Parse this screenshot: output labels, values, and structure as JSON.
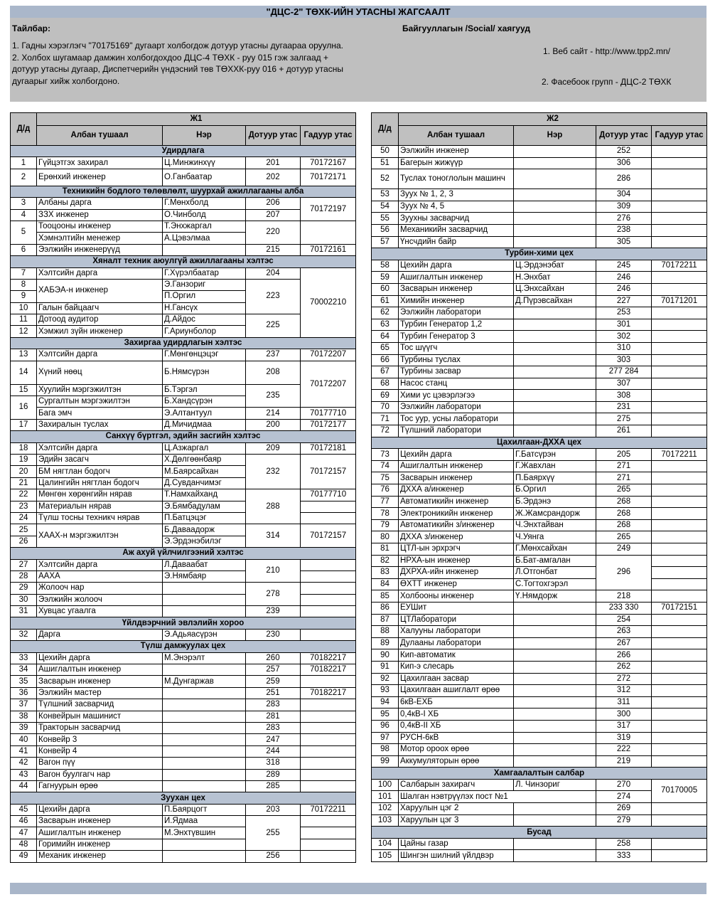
{
  "title": "\"ДЦС-2\" ТӨХК-ИЙН УТАСНЫ ЖАГСААЛТ",
  "notes": {
    "label": "Тайлбар:",
    "items": [
      "1. Гадны хэрэглэгч  \"70175169\" дугаарт холбогдож дотуур утасны дугаараа оруулна.",
      "2. Холбох шугамаар дамжин холбогдохдоо ДЦС-4 ТӨХК - руу 015 гэж залгаад + дотуур утасны дугаар, Диспетчерийн үндэсний төв ТӨХХК-руу 016 + дотуур утасны дугаарыг хийж холбогдоно."
    ]
  },
  "social": {
    "label": "Байгууллагын /Social/ хаягууд",
    "website": "1. Веб сайт - http://www.tpp2.mn/",
    "facebook": "2. Фасебоок групп - ДЦС-2 ТӨХК"
  },
  "columns": {
    "no": "Д/д",
    "title": "Албан тушаал",
    "name": "Нэр",
    "ext": "Дотуур утас",
    "phone": "Гадуур утас"
  },
  "tables": [
    {
      "heading": "Ж1",
      "rows": [
        {
          "section": "Удирдлага"
        },
        {
          "no": "1",
          "title": "Гүйцэтгэх захирал",
          "name": "Ц.Минжинхүү",
          "ext": "201",
          "phone": "70172167"
        },
        {
          "no": "2",
          "title": "Ерөнхий инженер",
          "name": "О.Ганбаатар",
          "ext": "202",
          "phone": "70172171"
        },
        {
          "section": "Техникийн бодлого төлөвлөлт, шуурхай ажиллагааны алба"
        },
        {
          "no": "3",
          "title": "Албаны дарга",
          "name": "Г.Мөнхболд",
          "ext": "206",
          "phone": "70172197"
        },
        {
          "no": "4",
          "title": "ЗЗХ инженер",
          "name": "О.Чинболд",
          "ext": "207"
        },
        {
          "no": "5",
          "title": "Тооцооны инженер",
          "name": "Т.Энхжаргал",
          "ext": "220"
        },
        {
          "title": "Хэмнэлтийн менежер",
          "name": "А.Цэвэлмаа"
        },
        {
          "no": "6",
          "title": "Ээлжийн инженерүүд",
          "ext": "215",
          "phone": "70172161"
        },
        {
          "section": "Хяналт техник аюулгүй ажиллагааны хэлтэс"
        },
        {
          "no": "7",
          "title": "Хэлтсийн дарга",
          "name": "Г.Хүрэлбаатар",
          "ext": "204",
          "phone": "70002210"
        },
        {
          "no": "8",
          "title": "ХАБЭА-н инженер",
          "name": "Э.Ганзориг",
          "ext": "223"
        },
        {
          "no": "9",
          "name": "П.Оргил"
        },
        {
          "no": "10",
          "title": "Галын байцаагч",
          "name": "Н.Гансүх"
        },
        {
          "no": "11",
          "title": "Дотоод аудитор",
          "name": "Д.Айдос",
          "ext": "225"
        },
        {
          "no": "12",
          "title": "Хэмжил зүйн инженер",
          "name": "Г.Ариунболор"
        },
        {
          "section": "Захиргаа удирдлагын хэлтэс"
        },
        {
          "no": "13",
          "title": "Хэлтсийн дарга",
          "name": "Г.Мөнгөнцэцэг",
          "ext": "237",
          "phone": "70172207"
        },
        {
          "no": "14",
          "title": "Хүний нөөц",
          "name": "Б.Нямсүрэн",
          "ext": "208",
          "phone": "70172207"
        },
        {
          "no": "15",
          "title": "Хуулийн мэргэжилтэн",
          "name": "Б.Тэргэл",
          "ext": "235"
        },
        {
          "no": "16",
          "title": "Сургалтын мэргэжилтэн",
          "name": "Б.Хандсүрэн"
        },
        {
          "title": "Бага эмч",
          "name": "Э.Алтантуул",
          "ext": "214",
          "phone": "70177710"
        },
        {
          "no": "17",
          "title": "Захиралын туслах",
          "name": "Д.Мичидмаа",
          "ext": "200",
          "phone": "70172177"
        },
        {
          "section": "Санхүү бүртгэл, эдийн засгийн хэлтэс"
        },
        {
          "no": "18",
          "title": "Хэлтсийн дарга",
          "name": "Ц.Азжаргал",
          "ext": "209",
          "phone": "70172181"
        },
        {
          "no": "19",
          "title": "Эдийн засагч",
          "name": "Х.Дөлгөөнбаяр",
          "ext": "232",
          "phone": "70172157"
        },
        {
          "no": "20",
          "title": "БМ нягтлан бодогч",
          "name": "М.Баярсайхан"
        },
        {
          "no": "21",
          "title": "Цалингийн нягтлан бодогч",
          "name": "Д.Сувданчимэг"
        },
        {
          "no": "22",
          "title": "Мөнгөн хөрөнгийн нярав",
          "name": "Т.Намхайханд",
          "ext": "288",
          "phone": "70177710"
        },
        {
          "no": "23",
          "title": "Материалын нярав",
          "name": "Э.Бямбадулам"
        },
        {
          "no": "24",
          "title": "Түлш тосны техникч нярав",
          "name": "П.Батцэцэг"
        },
        {
          "no": "25",
          "title": "ХААХ-н мэргэжилтэн",
          "name": "Б.Даваадорж",
          "ext": "314",
          "phone": "70172157"
        },
        {
          "no": "26",
          "name": "Э.Эрдэнэбилэг"
        },
        {
          "section": "Аж ахуй үйлчилгээний хэлтэс"
        },
        {
          "no": "27",
          "title": "Хэлтсийн дарга",
          "name": "Л.Даваабат",
          "ext": "210"
        },
        {
          "no": "28",
          "title": "ААХА",
          "name": "Э.Нямбаяр"
        },
        {
          "no": "29",
          "title": "Жолооч нар",
          "ext": "278"
        },
        {
          "no": "30",
          "title": "Ээлжийн жолооч"
        },
        {
          "no": "31",
          "title": "Хувцас угаалга",
          "ext": "239"
        },
        {
          "section": "Үйлдвэрчний эвлэлийн хороо"
        },
        {
          "no": "32",
          "title": "Дарга",
          "name": "Э.Адьяасүрэн",
          "ext": "230"
        },
        {
          "section": "Түлш дамжуулах цех"
        },
        {
          "no": "33",
          "title": "Цехийн дарга",
          "name": "М.Энэрэлт",
          "ext": "260",
          "phone": "70182217"
        },
        {
          "no": "34",
          "title": "Ашиглалтын инженер",
          "ext": "257",
          "phone": "70182217"
        },
        {
          "no": "35",
          "title": "Засварын инженер",
          "name": "М.Дунгаржав",
          "ext": "259"
        },
        {
          "no": "36",
          "title": "Ээлжийн мастер",
          "ext": "251",
          "phone": "70182217"
        },
        {
          "no": "37",
          "title": "Түлшний засварчид",
          "ext": "283"
        },
        {
          "no": "38",
          "title": "Конвейрын машинист",
          "ext": "281"
        },
        {
          "no": "39",
          "title": "Тракторын засварчид",
          "ext": "283"
        },
        {
          "no": "40",
          "title": "Конвейр 3",
          "ext": "247"
        },
        {
          "no": "41",
          "title": "Конвейр 4",
          "ext": "244"
        },
        {
          "no": "42",
          "title": "Вагон пүү",
          "ext": "318"
        },
        {
          "no": "43",
          "title": "Вагон буулгагч нар",
          "ext": "289"
        },
        {
          "no": "44",
          "title": "Гагнуурын өрөө",
          "ext": "285"
        },
        {
          "section": "Зуухан цех"
        },
        {
          "no": "45",
          "title": "Цехийн дарга",
          "name": "П.Баярцогт",
          "ext": "203",
          "phone": "70172211"
        },
        {
          "no": "46",
          "title": "Засварын инженер",
          "name": "И.Ядмаа",
          "ext": "255"
        },
        {
          "no": "47",
          "title": "Ашиглалтын инженер",
          "name": "М.Энхтүвшин"
        },
        {
          "no": "48",
          "title": "Горимийн инженер"
        },
        {
          "no": "49",
          "title": "Механик инженер",
          "ext": "256"
        }
      ]
    },
    {
      "heading": "Ж2",
      "rows": [
        {
          "no": "50",
          "title": "Ээлжийн инженер",
          "ext": "252"
        },
        {
          "no": "51",
          "title": "Багерын жижүүр",
          "ext": "306"
        },
        {
          "no": "52",
          "title": "Туслах тоноглолын машинч",
          "ext": "286"
        },
        {
          "no": "53",
          "title": "Зуух № 1, 2, 3",
          "ext": "304"
        },
        {
          "no": "54",
          "title": "Зуух № 4,  5",
          "ext": "309"
        },
        {
          "no": "55",
          "title": "Зуухны засварчид",
          "ext": "276"
        },
        {
          "no": "56",
          "title": "Механикийн засварчид",
          "ext": "238"
        },
        {
          "no": "57",
          "title": "Үнсчдийн байр",
          "ext": "305"
        },
        {
          "section": "Турбин-хими цех"
        },
        {
          "no": "58",
          "title": "Цехийн дарга",
          "name": "Ц.Эрдэнэбат",
          "ext": "245",
          "phone": "70172211"
        },
        {
          "no": "59",
          "title": "Ашиглалтын инженер",
          "name": "Н.Энхбат",
          "ext": "246"
        },
        {
          "no": "60",
          "title": "Засварын инженер",
          "name": "Ц.Энхсайхан",
          "ext": "246"
        },
        {
          "no": "61",
          "title": "Химийн инженер",
          "name": "Д.Пүрэвсайхан",
          "ext": "227",
          "phone": "70171201"
        },
        {
          "no": "62",
          "title": "Ээлжийн лаборатори",
          "ext": "253"
        },
        {
          "no": "63",
          "title": "Турбин Генератор 1,2",
          "ext": "301"
        },
        {
          "no": "64",
          "title": "Турбин Генератор 3",
          "ext": "302"
        },
        {
          "no": "65",
          "title": "Тос шүүгч",
          "ext": "310"
        },
        {
          "no": "66",
          "title": "Турбины туслах",
          "ext": "303"
        },
        {
          "no": "67",
          "title": "Турбины засвар",
          "ext": "277 284"
        },
        {
          "no": "68",
          "title": "Насос станц",
          "ext": "307"
        },
        {
          "no": "69",
          "title": "Хими ус цэвэрлэгээ",
          "ext": "308"
        },
        {
          "no": "70",
          "title": "Ээлжийн лаборатори",
          "ext": "231"
        },
        {
          "no": "71",
          "title": "Тос уур, усны лаборатори",
          "ext": "275"
        },
        {
          "no": "72",
          "title": "Түлшний лаборатори",
          "ext": "261"
        },
        {
          "section": "Цахилгаан-ДХХА цех"
        },
        {
          "no": "73",
          "title": "Цехийн дарга",
          "name": "Г.Батсүрэн",
          "ext": "205",
          "phone": "70172211"
        },
        {
          "no": "74",
          "title": "Ашиглалтын инженер",
          "name": "Г.Жавхлан",
          "ext": "271"
        },
        {
          "no": "75",
          "title": "Засварын инженер",
          "name": "П.Баярхүү",
          "ext": "271"
        },
        {
          "no": "76",
          "title": "ДХХА а/инженер",
          "name": "Б.Оргил",
          "ext": "265"
        },
        {
          "no": "77",
          "title": "Автоматикийн инженер",
          "name": "Б.Эрдэнэ",
          "ext": "268"
        },
        {
          "no": "78",
          "title": "Электроникийн инженер",
          "name": "Ж.Жамсрандорж",
          "ext": "268"
        },
        {
          "no": "79",
          "title": "Автоматикийн з/инженер",
          "name": "Ч.Энхтайван",
          "ext": "268"
        },
        {
          "no": "80",
          "title": "ДХХА з/инженер",
          "name": "Ч.Уянга",
          "ext": "265"
        },
        {
          "no": "81",
          "title": "ЦТЛ-ын эрхрэгч",
          "name": "Г.Мөнхсайхан",
          "ext": "249"
        },
        {
          "no": "82",
          "title": "НРХА-ын инженер",
          "name": "Б.Бат-амгалан",
          "ext": "296"
        },
        {
          "no": "83",
          "title": "ДХРХА-ийн инженер",
          "name": "Л.Отгонбат"
        },
        {
          "no": "84",
          "title": "ӨХТТ инженер",
          "name": "С.Тогтохгэрэл"
        },
        {
          "no": "85",
          "title": "Холбооны инженер",
          "name": "Ү.Нямдорж",
          "ext": "218"
        },
        {
          "no": "86",
          "title": "ЕУШит",
          "ext": "233 330",
          "phone": "70172151"
        },
        {
          "no": "87",
          "title": "ЦТЛаборатори",
          "ext": "254"
        },
        {
          "no": "88",
          "title": "Халууны лаборатори",
          "ext": "263"
        },
        {
          "no": "89",
          "title": "Дулааны лаборатори",
          "ext": "267"
        },
        {
          "no": "90",
          "title": "Кип-автоматик",
          "ext": "266"
        },
        {
          "no": "91",
          "title": "Кип-э слесарь",
          "ext": "262"
        },
        {
          "no": "92",
          "title": "Цахилгаан засвар",
          "ext": "272"
        },
        {
          "no": "93",
          "title": "Цахилгаан ашиглалт өрөө",
          "ext": "312"
        },
        {
          "no": "94",
          "title": "6кВ-ЕХБ",
          "ext": "311"
        },
        {
          "no": "95",
          "title": "0,4кВ-I ХБ",
          "ext": "300"
        },
        {
          "no": "96",
          "title": "0,4кВ-II ХБ",
          "ext": "317"
        },
        {
          "no": "97",
          "title": "РУСН-6кВ",
          "ext": "319"
        },
        {
          "no": "98",
          "title": "Мотор ороох өрөө",
          "ext": "222"
        },
        {
          "no": "99",
          "title": "Аккумуляторын өрөө",
          "ext": "219"
        },
        {
          "section": "Хамгаалалтын салбар"
        },
        {
          "no": "100",
          "title": "Салбарын захирагч",
          "name": "Л. Чинзориг",
          "ext": "270",
          "phone": "70170005"
        },
        {
          "no": "101",
          "title": "Шалган нэвтрүүлэх пост №1",
          "ext": "274"
        },
        {
          "no": "102",
          "title": "Харуулын цэг 2",
          "ext": "269"
        },
        {
          "no": "103",
          "title": "Харуулын цэг 3",
          "ext": "279"
        },
        {
          "section": "Бусад"
        },
        {
          "no": "104",
          "title": "Цайны газар",
          "ext": "258"
        },
        {
          "no": "105",
          "title": "Шингэн шилний үйлдвэр",
          "ext": "333"
        }
      ]
    }
  ]
}
